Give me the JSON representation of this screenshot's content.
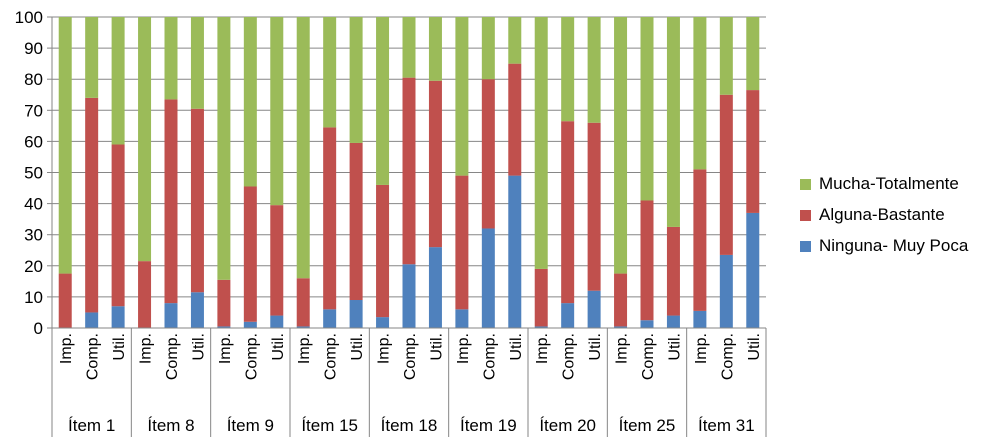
{
  "chart_data": {
    "type": "bar",
    "stacked": true,
    "ylim": [
      0,
      100
    ],
    "yticks": [
      0,
      10,
      20,
      30,
      40,
      50,
      60,
      70,
      80,
      90,
      100
    ],
    "groups": [
      "Ítem 1",
      "Ítem 8",
      "Ítem 9",
      "Ítem 15",
      "Ítem 18",
      "Ítem 19",
      "Ítem 20",
      "Ítem 25",
      "Ítem 31"
    ],
    "subcategories": [
      "Imp.",
      "Comp.",
      "Util."
    ],
    "series": [
      {
        "name": "Ninguna- Muy Poca",
        "color": "#4F81BD",
        "values": [
          0,
          5,
          7,
          0,
          8,
          11.5,
          0.5,
          2,
          4,
          0.5,
          6,
          9,
          3.5,
          20.5,
          26,
          6,
          32,
          49,
          0.5,
          8,
          12,
          0.5,
          2.5,
          4,
          5.5,
          23.5,
          37
        ]
      },
      {
        "name": "Alguna-Bastante",
        "color": "#C0504D",
        "values": [
          17.5,
          69,
          52,
          21.5,
          65.5,
          59,
          15,
          43.5,
          35.5,
          15.5,
          58.5,
          50.5,
          42.5,
          60,
          53.5,
          43,
          48,
          36,
          18.5,
          58.5,
          54,
          17,
          38.5,
          28.5,
          45.5,
          51.5,
          39.5
        ]
      },
      {
        "name": "Mucha-Totalmente",
        "color": "#9BBB59",
        "values": [
          82.5,
          26,
          41,
          78.5,
          26.5,
          29.5,
          84.5,
          54.5,
          60.5,
          84,
          35.5,
          40.5,
          54,
          19.5,
          20.5,
          51,
          20,
          15,
          81,
          33.5,
          34,
          82.5,
          59,
          67.5,
          49,
          25,
          23.5
        ]
      }
    ],
    "legend_position": "right",
    "grid": true
  }
}
